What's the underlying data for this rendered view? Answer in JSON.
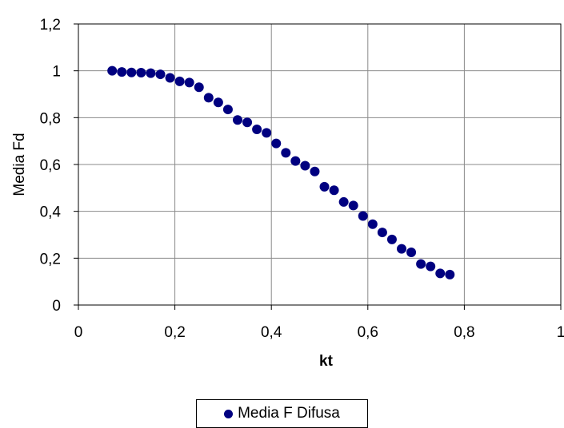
{
  "chart_data": {
    "type": "scatter",
    "title": "",
    "xlabel": "kt",
    "ylabel": "Media Fd",
    "xlim": [
      0,
      1
    ],
    "ylim": [
      0,
      1.2
    ],
    "x_ticks": [
      "0",
      "0,2",
      "0,4",
      "0,6",
      "0,8",
      "1"
    ],
    "y_ticks": [
      "0",
      "0,2",
      "0,4",
      "0,6",
      "0,8",
      "1",
      "1,2"
    ],
    "grid": true,
    "legend_position": "bottom",
    "series": [
      {
        "name": "Media F Difusa",
        "color": "#000080",
        "points": [
          [
            0.07,
            1.0
          ],
          [
            0.09,
            0.995
          ],
          [
            0.11,
            0.993
          ],
          [
            0.13,
            0.992
          ],
          [
            0.15,
            0.99
          ],
          [
            0.17,
            0.985
          ],
          [
            0.19,
            0.97
          ],
          [
            0.21,
            0.955
          ],
          [
            0.23,
            0.95
          ],
          [
            0.25,
            0.93
          ],
          [
            0.27,
            0.885
          ],
          [
            0.29,
            0.865
          ],
          [
            0.31,
            0.835
          ],
          [
            0.33,
            0.79
          ],
          [
            0.35,
            0.78
          ],
          [
            0.37,
            0.75
          ],
          [
            0.39,
            0.735
          ],
          [
            0.41,
            0.69
          ],
          [
            0.43,
            0.65
          ],
          [
            0.45,
            0.615
          ],
          [
            0.47,
            0.595
          ],
          [
            0.49,
            0.57
          ],
          [
            0.51,
            0.505
          ],
          [
            0.53,
            0.49
          ],
          [
            0.55,
            0.44
          ],
          [
            0.57,
            0.425
          ],
          [
            0.59,
            0.38
          ],
          [
            0.61,
            0.345
          ],
          [
            0.63,
            0.31
          ],
          [
            0.65,
            0.28
          ],
          [
            0.67,
            0.24
          ],
          [
            0.69,
            0.225
          ],
          [
            0.71,
            0.175
          ],
          [
            0.73,
            0.165
          ],
          [
            0.75,
            0.135
          ],
          [
            0.77,
            0.13
          ]
        ]
      }
    ]
  }
}
